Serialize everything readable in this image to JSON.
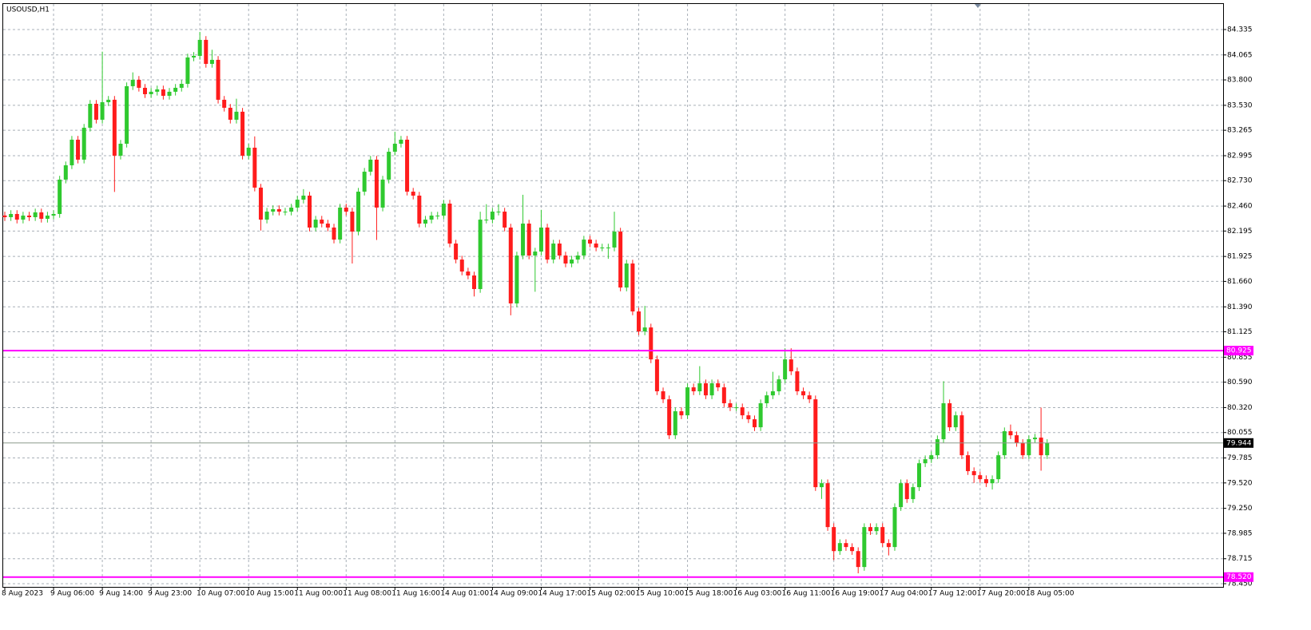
{
  "chart_data": {
    "type": "candlestick",
    "title": "USOUSD,H1",
    "bull_color": "#2fc92f",
    "bear_color": "#ff1c1c",
    "grid": true,
    "categories": [
      "8 Aug 2023",
      null,
      null,
      null,
      null,
      null,
      null,
      null,
      "9 Aug 06:00",
      null,
      null,
      null,
      null,
      null,
      null,
      null,
      "9 Aug 14:00",
      null,
      null,
      null,
      null,
      null,
      null,
      null,
      "9 Aug 23:00",
      null,
      null,
      null,
      null,
      null,
      null,
      null,
      "10 Aug 07:00",
      null,
      null,
      null,
      null,
      null,
      null,
      null,
      "10 Aug 15:00",
      null,
      null,
      null,
      null,
      null,
      null,
      null,
      "11 Aug 00:00",
      null,
      null,
      null,
      null,
      null,
      null,
      null,
      "11 Aug 08:00",
      null,
      null,
      null,
      null,
      null,
      null,
      null,
      "11 Aug 16:00",
      null,
      null,
      null,
      null,
      null,
      null,
      null,
      "14 Aug 01:00",
      null,
      null,
      null,
      null,
      null,
      null,
      null,
      "14 Aug 09:00",
      null,
      null,
      null,
      null,
      null,
      null,
      null,
      "14 Aug 17:00",
      null,
      null,
      null,
      null,
      null,
      null,
      null,
      "15 Aug 02:00",
      null,
      null,
      null,
      null,
      null,
      null,
      null,
      "15 Aug 10:00",
      null,
      null,
      null,
      null,
      null,
      null,
      null,
      "15 Aug 18:00",
      null,
      null,
      null,
      null,
      null,
      null,
      null,
      "16 Aug 03:00",
      null,
      null,
      null,
      null,
      null,
      null,
      null,
      "16 Aug 11:00",
      null,
      null,
      null,
      null,
      null,
      null,
      null,
      "16 Aug 19:00",
      null,
      null,
      null,
      null,
      null,
      null,
      null,
      "17 Aug 04:00",
      null,
      null,
      null,
      null,
      null,
      null,
      null,
      "17 Aug 12:00",
      null,
      null,
      null,
      null,
      null,
      null,
      null,
      "17 Aug 20:00",
      null,
      null,
      null,
      null,
      null,
      null,
      null,
      "18 Aug 05:00",
      null,
      null,
      null
    ],
    "open": [
      82.36,
      82.342,
      82.376,
      82.316,
      82.359,
      82.342,
      82.393,
      82.325,
      82.359,
      82.376,
      82.741,
      82.893,
      83.165,
      82.953,
      83.292,
      83.546,
      83.377,
      83.563,
      83.589,
      82.995,
      83.122,
      83.733,
      83.801,
      83.716,
      83.648,
      83.674,
      83.699,
      83.631,
      83.674,
      83.716,
      83.758,
      84.038,
      84.055,
      84.225,
      83.97,
      84.013,
      83.589,
      83.504,
      83.377,
      83.462,
      82.995,
      83.08,
      82.656,
      82.316,
      82.401,
      82.427,
      82.401,
      82.401,
      82.444,
      82.528,
      82.571,
      82.232,
      82.316,
      82.274,
      82.232,
      82.104,
      82.444,
      82.401,
      82.189,
      82.613,
      82.825,
      82.953,
      82.444,
      82.741,
      83.037,
      83.122,
      83.165,
      82.613,
      82.571,
      82.274,
      82.316,
      82.359,
      82.359,
      82.486,
      82.062,
      81.892,
      81.765,
      81.723,
      81.579,
      82.316,
      82.316,
      82.401,
      82.401,
      82.232,
      81.426,
      81.935,
      82.274,
      81.935,
      81.977,
      82.232,
      81.892,
      82.062,
      81.935,
      81.85,
      81.892,
      81.935,
      82.104,
      82.062,
      82.02,
      82.02,
      82.02,
      82.189,
      81.595,
      81.85,
      81.341,
      81.129,
      81.171,
      80.832,
      80.493,
      80.408,
      80.026,
      80.281,
      80.238,
      80.535,
      80.493,
      80.578,
      80.45,
      80.578,
      80.535,
      80.366,
      80.323,
      80.323,
      80.238,
      80.196,
      80.111,
      80.366,
      80.45,
      80.493,
      80.62,
      80.832,
      80.705,
      80.493,
      80.45,
      80.408,
      79.475,
      79.517,
      79.051,
      78.796,
      78.881,
      78.839,
      78.796,
      78.627,
      79.051,
      79.008,
      79.051,
      78.881,
      78.839,
      79.263,
      79.517,
      79.348,
      79.475,
      79.729,
      79.772,
      79.814,
      79.984,
      80.366,
      80.111,
      80.238,
      79.814,
      79.645,
      79.602,
      79.56,
      79.517,
      79.56,
      79.814,
      80.069,
      80.026,
      79.944,
      79.814,
      79.984,
      80.001,
      79.814
    ],
    "high": [
      82.4,
      82.416,
      82.416,
      82.399,
      82.399,
      82.433,
      82.433,
      82.399,
      82.416,
      82.781,
      82.933,
      83.205,
      83.205,
      83.332,
      83.586,
      83.586,
      84.1,
      83.629,
      83.629,
      83.162,
      83.773,
      83.88,
      83.841,
      83.756,
      83.714,
      83.739,
      83.739,
      83.714,
      83.756,
      83.798,
      84.078,
      84.095,
      84.31,
      84.265,
      84.12,
      84.053,
      83.629,
      83.544,
      83.6,
      83.502,
      83.12,
      83.2,
      82.696,
      82.441,
      82.467,
      82.467,
      82.441,
      82.484,
      82.568,
      82.64,
      82.611,
      82.356,
      82.356,
      82.314,
      82.272,
      82.484,
      82.484,
      82.441,
      82.653,
      82.865,
      82.993,
      82.993,
      82.781,
      83.077,
      83.25,
      83.205,
      83.205,
      82.653,
      82.611,
      82.356,
      82.399,
      82.399,
      82.526,
      82.526,
      82.102,
      81.932,
      81.805,
      81.763,
      82.4,
      82.48,
      82.441,
      82.48,
      82.441,
      82.272,
      81.975,
      82.58,
      82.314,
      82.017,
      82.42,
      82.272,
      82.102,
      82.102,
      81.975,
      81.932,
      81.975,
      82.144,
      82.144,
      82.102,
      82.06,
      82.06,
      82.4,
      82.229,
      81.89,
      81.89,
      81.381,
      81.4,
      81.211,
      80.872,
      80.533,
      80.448,
      80.321,
      80.321,
      80.575,
      80.575,
      80.76,
      80.618,
      80.618,
      80.618,
      80.575,
      80.406,
      80.363,
      80.363,
      80.278,
      80.236,
      80.406,
      80.49,
      80.7,
      80.66,
      80.95,
      80.95,
      80.745,
      80.533,
      80.49,
      80.448,
      79.557,
      79.557,
      79.091,
      78.921,
      78.921,
      78.879,
      78.836,
      79.091,
      79.091,
      79.091,
      79.091,
      78.921,
      79.303,
      79.557,
      79.557,
      79.515,
      79.769,
      79.812,
      79.854,
      80.024,
      80.6,
      80.406,
      80.278,
      80.278,
      79.854,
      79.685,
      79.642,
      79.6,
      79.6,
      79.854,
      80.109,
      80.14,
      80.066,
      79.984,
      80.024,
      80.041,
      80.32,
      79.984
    ],
    "low": [
      82.302,
      82.302,
      82.276,
      82.276,
      82.302,
      82.302,
      82.285,
      82.285,
      82.319,
      82.336,
      82.701,
      82.853,
      82.913,
      82.913,
      83.252,
      83.337,
      83.337,
      83.523,
      82.61,
      82.955,
      83.082,
      83.693,
      83.676,
      83.608,
      83.608,
      83.634,
      83.591,
      83.591,
      83.634,
      83.676,
      83.718,
      83.998,
      84.015,
      83.93,
      83.93,
      83.549,
      83.464,
      83.337,
      83.337,
      82.955,
      82.955,
      82.616,
      82.2,
      82.276,
      82.361,
      82.361,
      82.361,
      82.361,
      82.404,
      82.488,
      82.192,
      82.192,
      82.234,
      82.192,
      82.064,
      82.064,
      82.361,
      81.85,
      82.149,
      82.573,
      82.785,
      82.1,
      82.404,
      82.701,
      82.997,
      83.082,
      82.573,
      82.531,
      82.234,
      82.234,
      82.276,
      82.319,
      82.319,
      82.022,
      81.852,
      81.725,
      81.683,
      81.5,
      81.539,
      82.276,
      82.276,
      82.361,
      82.192,
      81.3,
      81.386,
      81.895,
      81.895,
      81.55,
      81.937,
      81.852,
      81.852,
      81.895,
      81.81,
      81.81,
      81.852,
      81.895,
      82.022,
      81.98,
      81.98,
      81.9,
      81.98,
      81.555,
      81.555,
      81.301,
      81.089,
      81.089,
      80.792,
      80.453,
      80.368,
      79.986,
      79.986,
      80.198,
      80.198,
      80.453,
      80.453,
      80.41,
      80.41,
      80.495,
      80.326,
      80.283,
      80.283,
      80.198,
      80.156,
      80.071,
      80.071,
      80.326,
      80.41,
      80.453,
      80.58,
      80.665,
      80.453,
      80.41,
      80.368,
      79.435,
      79.35,
      79.011,
      78.7,
      78.756,
      78.799,
      78.756,
      78.56,
      78.587,
      78.968,
      78.968,
      78.841,
      78.75,
      78.799,
      79.223,
      79.308,
      79.308,
      79.435,
      79.689,
      79.732,
      79.774,
      79.944,
      80.071,
      80.071,
      79.774,
      79.605,
      79.52,
      79.52,
      79.477,
      79.45,
      79.52,
      79.774,
      79.986,
      79.904,
      79.774,
      79.774,
      79.944,
      79.65,
      79.774
    ],
    "close": [
      82.342,
      82.376,
      82.316,
      82.359,
      82.342,
      82.393,
      82.325,
      82.359,
      82.376,
      82.741,
      82.893,
      83.165,
      82.953,
      83.292,
      83.546,
      83.377,
      83.563,
      83.589,
      82.995,
      83.122,
      83.733,
      83.801,
      83.716,
      83.648,
      83.674,
      83.699,
      83.631,
      83.674,
      83.716,
      83.758,
      84.038,
      84.055,
      84.225,
      83.97,
      84.013,
      83.589,
      83.504,
      83.377,
      83.462,
      82.995,
      83.08,
      82.656,
      82.316,
      82.401,
      82.427,
      82.401,
      82.401,
      82.444,
      82.528,
      82.571,
      82.232,
      82.316,
      82.274,
      82.232,
      82.104,
      82.444,
      82.401,
      82.189,
      82.613,
      82.825,
      82.953,
      82.444,
      82.741,
      83.037,
      83.122,
      83.165,
      82.613,
      82.571,
      82.274,
      82.316,
      82.359,
      82.359,
      82.486,
      82.062,
      81.892,
      81.765,
      81.723,
      81.579,
      82.316,
      82.316,
      82.401,
      82.401,
      82.232,
      81.426,
      81.935,
      82.274,
      81.935,
      81.977,
      82.232,
      81.892,
      82.062,
      81.935,
      81.85,
      81.892,
      81.935,
      82.104,
      82.062,
      82.02,
      82.02,
      82.02,
      82.189,
      81.595,
      81.85,
      81.341,
      81.129,
      81.171,
      80.832,
      80.493,
      80.408,
      80.026,
      80.281,
      80.238,
      80.535,
      80.493,
      80.578,
      80.45,
      80.578,
      80.535,
      80.366,
      80.323,
      80.323,
      80.238,
      80.196,
      80.111,
      80.366,
      80.45,
      80.493,
      80.62,
      80.832,
      80.705,
      80.493,
      80.45,
      80.408,
      79.475,
      79.517,
      79.051,
      78.796,
      78.881,
      78.839,
      78.796,
      78.627,
      79.051,
      79.008,
      79.051,
      78.881,
      78.839,
      79.263,
      79.517,
      79.348,
      79.475,
      79.729,
      79.772,
      79.814,
      79.984,
      80.366,
      80.111,
      80.238,
      79.814,
      79.645,
      79.602,
      79.56,
      79.517,
      79.56,
      79.814,
      80.069,
      80.026,
      79.944,
      79.814,
      79.984,
      80.001,
      79.814,
      79.944
    ],
    "ylim": [
      78.416,
      84.606
    ],
    "yticks": [
      {
        "value": 84.335,
        "label": "84.335"
      },
      {
        "value": 84.065,
        "label": "84.065"
      },
      {
        "value": 83.8,
        "label": "83.800"
      },
      {
        "value": 83.53,
        "label": "83.530"
      },
      {
        "value": 83.265,
        "label": "83.265"
      },
      {
        "value": 82.995,
        "label": "82.995"
      },
      {
        "value": 82.73,
        "label": "82.730"
      },
      {
        "value": 82.46,
        "label": "82.460"
      },
      {
        "value": 82.195,
        "label": "82.195"
      },
      {
        "value": 81.925,
        "label": "81.925"
      },
      {
        "value": 81.66,
        "label": "81.660"
      },
      {
        "value": 81.39,
        "label": "81.390"
      },
      {
        "value": 81.125,
        "label": "81.125"
      },
      {
        "value": 80.855,
        "label": "80.855"
      },
      {
        "value": 80.59,
        "label": "80.590"
      },
      {
        "value": 80.32,
        "label": "80.320"
      },
      {
        "value": 80.055,
        "label": "80.055"
      },
      {
        "value": 79.785,
        "label": "79.785"
      },
      {
        "value": 79.52,
        "label": "79.520"
      },
      {
        "value": 79.25,
        "label": "79.250"
      },
      {
        "value": 78.985,
        "label": "78.985"
      },
      {
        "value": 78.715,
        "label": "78.715"
      },
      {
        "value": 78.45,
        "label": "78.450"
      }
    ],
    "hlines": [
      {
        "value": 80.925,
        "label": "80.925",
        "color": "#ff00ff",
        "label_bg": "#ff00ff",
        "label_color": "#ffffff"
      },
      {
        "value": 78.52,
        "label": "78.520",
        "color": "#ff00ff",
        "label_bg": "#ff00ff",
        "label_color": "#ffffff"
      },
      {
        "value": 79.944,
        "label": "79.944",
        "color": "#8c9a8c",
        "label_bg": "#000000",
        "label_color": "#ffffff"
      }
    ]
  }
}
